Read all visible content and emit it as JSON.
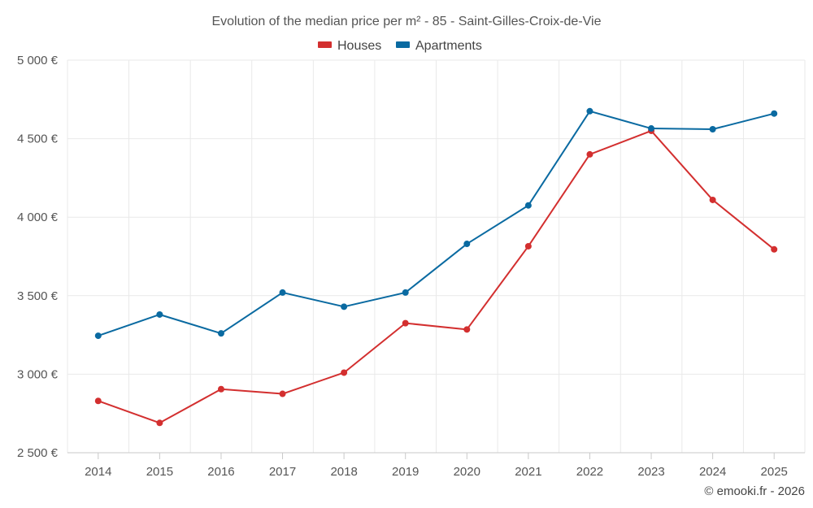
{
  "chart_data": {
    "type": "line",
    "title": "Evolution of the median price per m² - 85 - Saint-Gilles-Croix-de-Vie",
    "categories": [
      "2014",
      "2015",
      "2016",
      "2017",
      "2018",
      "2019",
      "2020",
      "2021",
      "2022",
      "2023",
      "2024",
      "2025"
    ],
    "series": [
      {
        "name": "Houses",
        "color": "#d32f2f",
        "values": [
          2830,
          2690,
          2905,
          2875,
          3010,
          3325,
          3285,
          3815,
          4400,
          4550,
          4110,
          3795
        ]
      },
      {
        "name": "Apartments",
        "color": "#0a6aa1",
        "values": [
          3245,
          3380,
          3260,
          3520,
          3430,
          3520,
          3830,
          4075,
          4675,
          4565,
          4560,
          4660
        ]
      }
    ],
    "ylim": [
      2500,
      5000
    ],
    "yticks": [
      2500,
      3000,
      3500,
      4000,
      4500,
      5000
    ],
    "ytick_labels": [
      "2 500 €",
      "3 000 €",
      "3 500 €",
      "4 000 €",
      "4 500 €",
      "5 000 €"
    ],
    "xlabel": "",
    "ylabel": "",
    "grid": true,
    "legend": "top-center",
    "credit": "© emooki.fr - 2026"
  }
}
